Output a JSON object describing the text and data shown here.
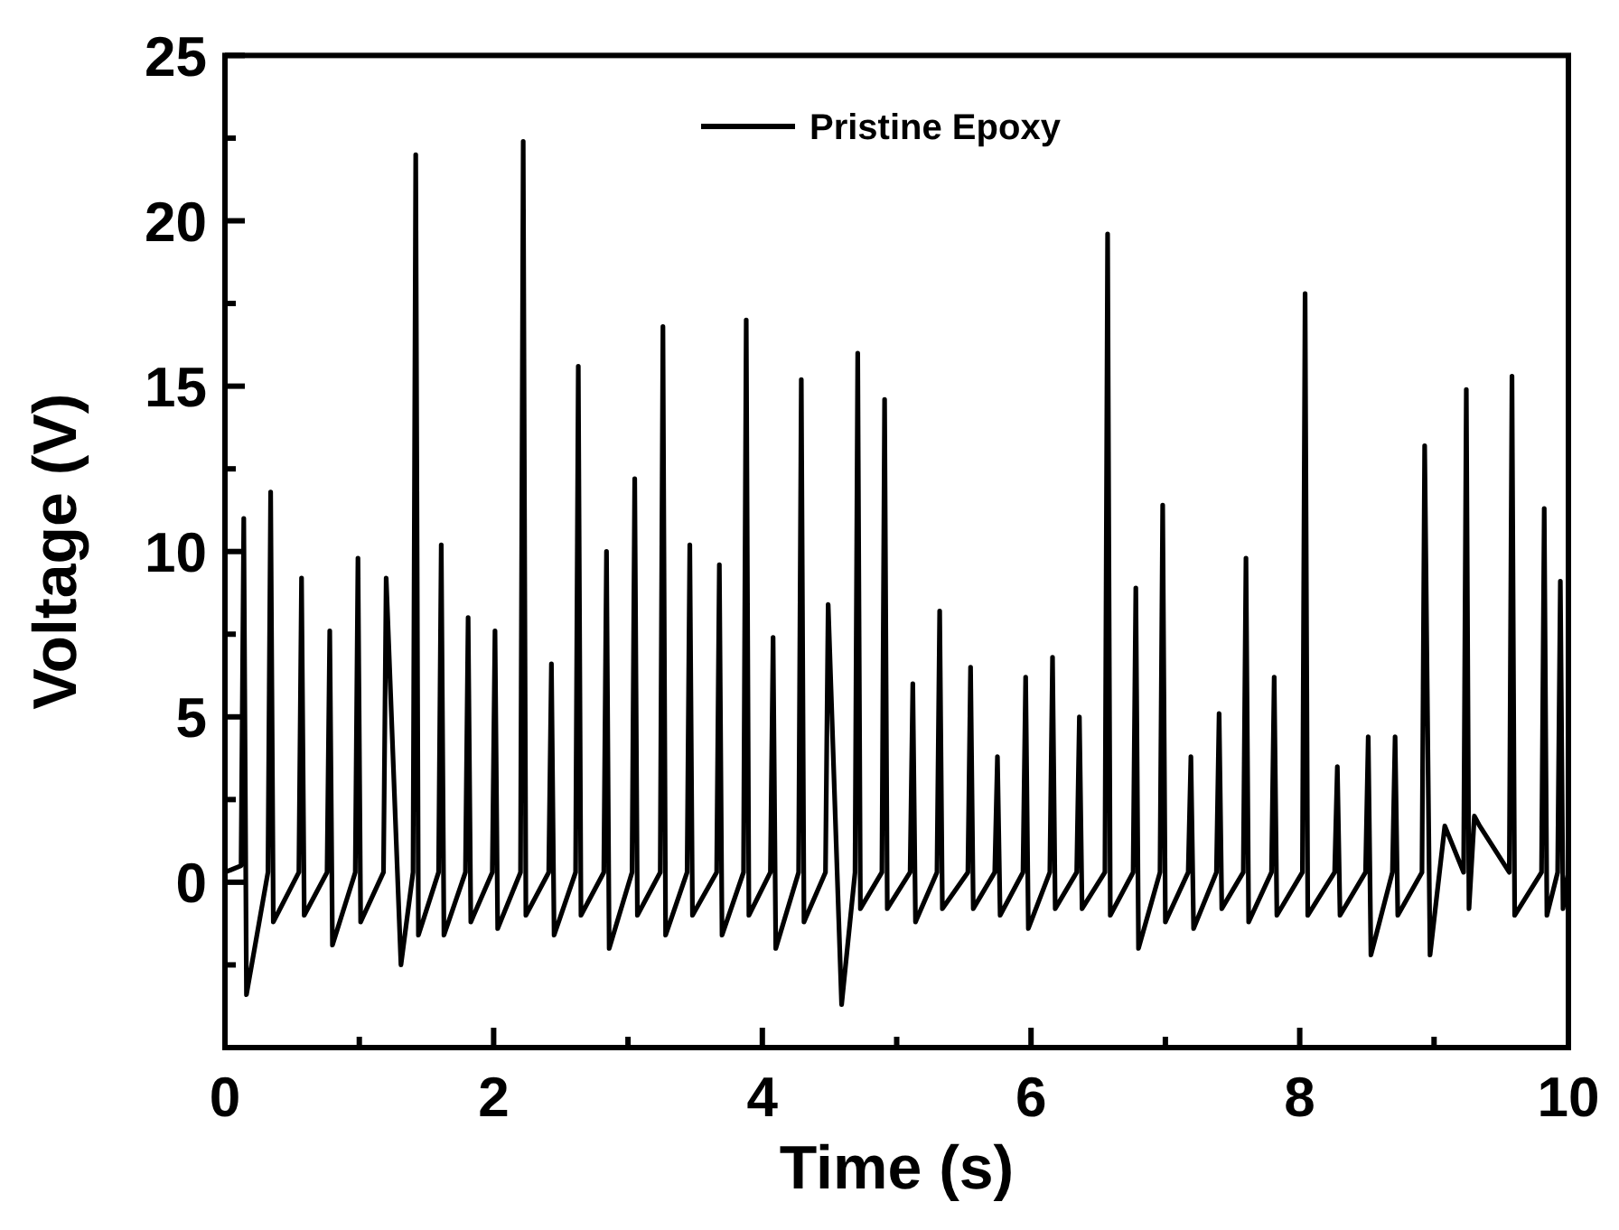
{
  "chart_data": {
    "type": "line",
    "xlabel": "Time (s)",
    "ylabel": "Voltage (V)",
    "legend": "top",
    "xlim": [
      0,
      10
    ],
    "ylim": [
      -5,
      25
    ],
    "xticks": [
      0,
      {
        "value": 1,
        "label": null
      },
      2,
      {
        "value": 3,
        "label": null
      },
      4,
      {
        "value": 5,
        "label": null
      },
      6,
      {
        "value": 7,
        "label": null
      },
      8,
      {
        "value": 9,
        "label": null
      },
      10
    ],
    "yticks": [
      {
        "value": -2.5,
        "label": null
      },
      0,
      {
        "value": 2.5,
        "label": null
      },
      5,
      {
        "value": 7.5,
        "label": null
      },
      10,
      {
        "value": 12.5,
        "label": null
      },
      15,
      {
        "value": 17.5,
        "label": null
      },
      20,
      {
        "value": 22.5,
        "label": null
      },
      25
    ],
    "x": [
      0,
      0.12,
      0.14,
      0.16,
      0.32,
      0.34,
      0.36,
      0.55,
      0.57,
      0.59,
      0.76,
      0.78,
      0.8,
      0.97,
      0.99,
      1.01,
      1.18,
      1.2,
      1.31,
      1.4,
      1.42,
      1.44,
      1.59,
      1.61,
      1.63,
      1.79,
      1.81,
      1.83,
      1.99,
      2.01,
      2.03,
      2.2,
      2.22,
      2.24,
      2.41,
      2.43,
      2.45,
      2.61,
      2.63,
      2.65,
      2.82,
      2.84,
      2.86,
      3.03,
      3.05,
      3.07,
      3.24,
      3.26,
      3.28,
      3.44,
      3.46,
      3.48,
      3.66,
      3.68,
      3.7,
      3.86,
      3.88,
      3.9,
      4.06,
      4.08,
      4.1,
      4.27,
      4.29,
      4.31,
      4.47,
      4.49,
      4.59,
      4.69,
      4.71,
      4.73,
      4.89,
      4.91,
      4.93,
      5.1,
      5.12,
      5.14,
      5.3,
      5.32,
      5.34,
      5.53,
      5.55,
      5.57,
      5.73,
      5.75,
      5.77,
      5.94,
      5.96,
      5.98,
      6.14,
      6.16,
      6.18,
      6.34,
      6.36,
      6.38,
      6.55,
      6.57,
      6.59,
      6.76,
      6.78,
      6.8,
      6.96,
      6.98,
      7,
      7.17,
      7.19,
      7.21,
      7.38,
      7.4,
      7.42,
      7.58,
      7.6,
      7.62,
      7.79,
      7.81,
      7.83,
      8.02,
      8.04,
      8.06,
      8.26,
      8.28,
      8.3,
      8.49,
      8.51,
      8.53,
      8.69,
      8.71,
      8.73,
      8.91,
      8.93,
      8.97,
      9.08,
      9.22,
      9.24,
      9.26,
      9.3,
      9.34,
      9.56,
      9.58,
      9.6,
      9.8,
      9.82,
      9.84,
      9.92,
      9.94,
      9.96,
      10
    ],
    "series": [
      {
        "name": "Pristine Epoxy",
        "color": "#000000",
        "values": [
          0.3,
          0.5,
          11.0,
          -3.4,
          0.3,
          11.8,
          -1.2,
          0.3,
          9.2,
          -1.0,
          0.3,
          7.6,
          -1.9,
          0.3,
          9.8,
          -1.2,
          0.3,
          9.2,
          -2.5,
          0.3,
          22.0,
          -1.6,
          0.3,
          10.2,
          -1.6,
          0.3,
          8.0,
          -1.2,
          0.3,
          7.6,
          -1.4,
          0.3,
          22.4,
          -1.0,
          0.3,
          6.6,
          -1.6,
          0.3,
          15.6,
          -1.0,
          0.3,
          10.0,
          -2.0,
          0.3,
          12.2,
          -1.0,
          0.3,
          16.8,
          -1.6,
          0.3,
          10.2,
          -1.0,
          0.3,
          9.6,
          -1.6,
          0.3,
          17.0,
          -1.0,
          0.3,
          7.4,
          -2.0,
          0.3,
          15.2,
          -1.2,
          0.3,
          8.4,
          -3.7,
          0.3,
          16.0,
          -0.8,
          0.3,
          14.6,
          -0.8,
          0.3,
          6.0,
          -1.2,
          0.3,
          8.2,
          -0.8,
          0.3,
          6.5,
          -0.8,
          0.3,
          3.8,
          -1.0,
          0.3,
          6.2,
          -1.4,
          0.3,
          6.8,
          -0.8,
          0.3,
          5.0,
          -0.8,
          0.3,
          19.6,
          -1.0,
          0.3,
          8.9,
          -2.0,
          0.3,
          11.4,
          -1.2,
          0.3,
          3.8,
          -1.4,
          0.3,
          5.1,
          -0.8,
          0.3,
          9.8,
          -1.2,
          0.3,
          6.2,
          -1.0,
          0.3,
          17.8,
          -1.0,
          0.3,
          3.5,
          -1.0,
          0.3,
          4.4,
          -2.2,
          0.3,
          4.4,
          -1.0,
          0.3,
          13.2,
          -2.2,
          1.7,
          0.3,
          14.9,
          -0.8,
          2.0,
          1.7,
          0.3,
          15.3,
          -1.0,
          0.3,
          11.3,
          -1.0,
          0.3,
          9.1,
          -0.8,
          0.3
        ]
      }
    ]
  }
}
